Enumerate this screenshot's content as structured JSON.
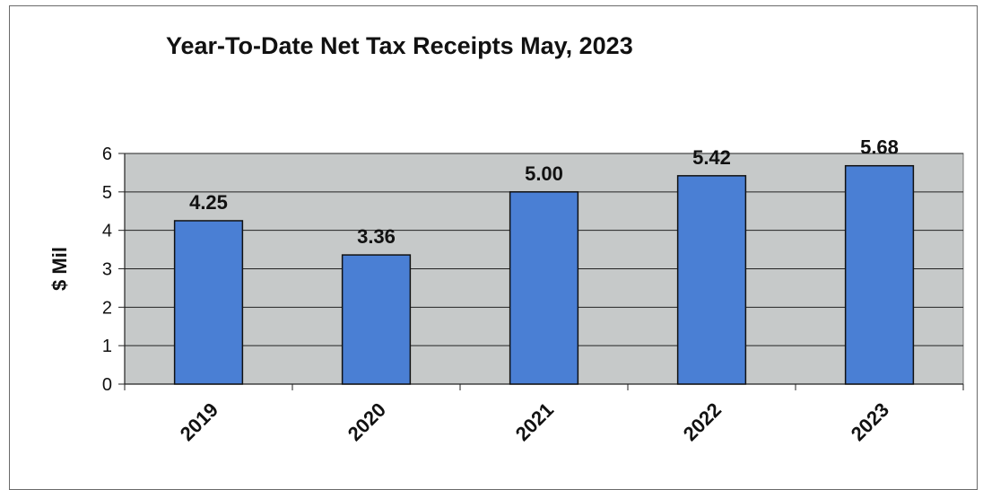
{
  "chart_data": {
    "type": "bar",
    "title": "Year-To-Date Net Tax Receipts May, 2023",
    "xlabel": "",
    "ylabel": "$ Mil",
    "categories": [
      "2019",
      "2020",
      "2021",
      "2022",
      "2023"
    ],
    "values": [
      4.25,
      3.36,
      5.0,
      5.42,
      5.68
    ],
    "value_labels": [
      "4.25",
      "3.36",
      "5.00",
      "5.42",
      "5.68"
    ],
    "ylim": [
      0,
      6
    ],
    "yticks": [
      "0",
      "1",
      "2",
      "3",
      "4",
      "5",
      "6"
    ],
    "grid": true,
    "legend": "none",
    "colors": {
      "bar": "#4a7fd4",
      "bar_border": "#111111",
      "plot_background": "#c6c9c9",
      "gridline": "#222222"
    }
  }
}
